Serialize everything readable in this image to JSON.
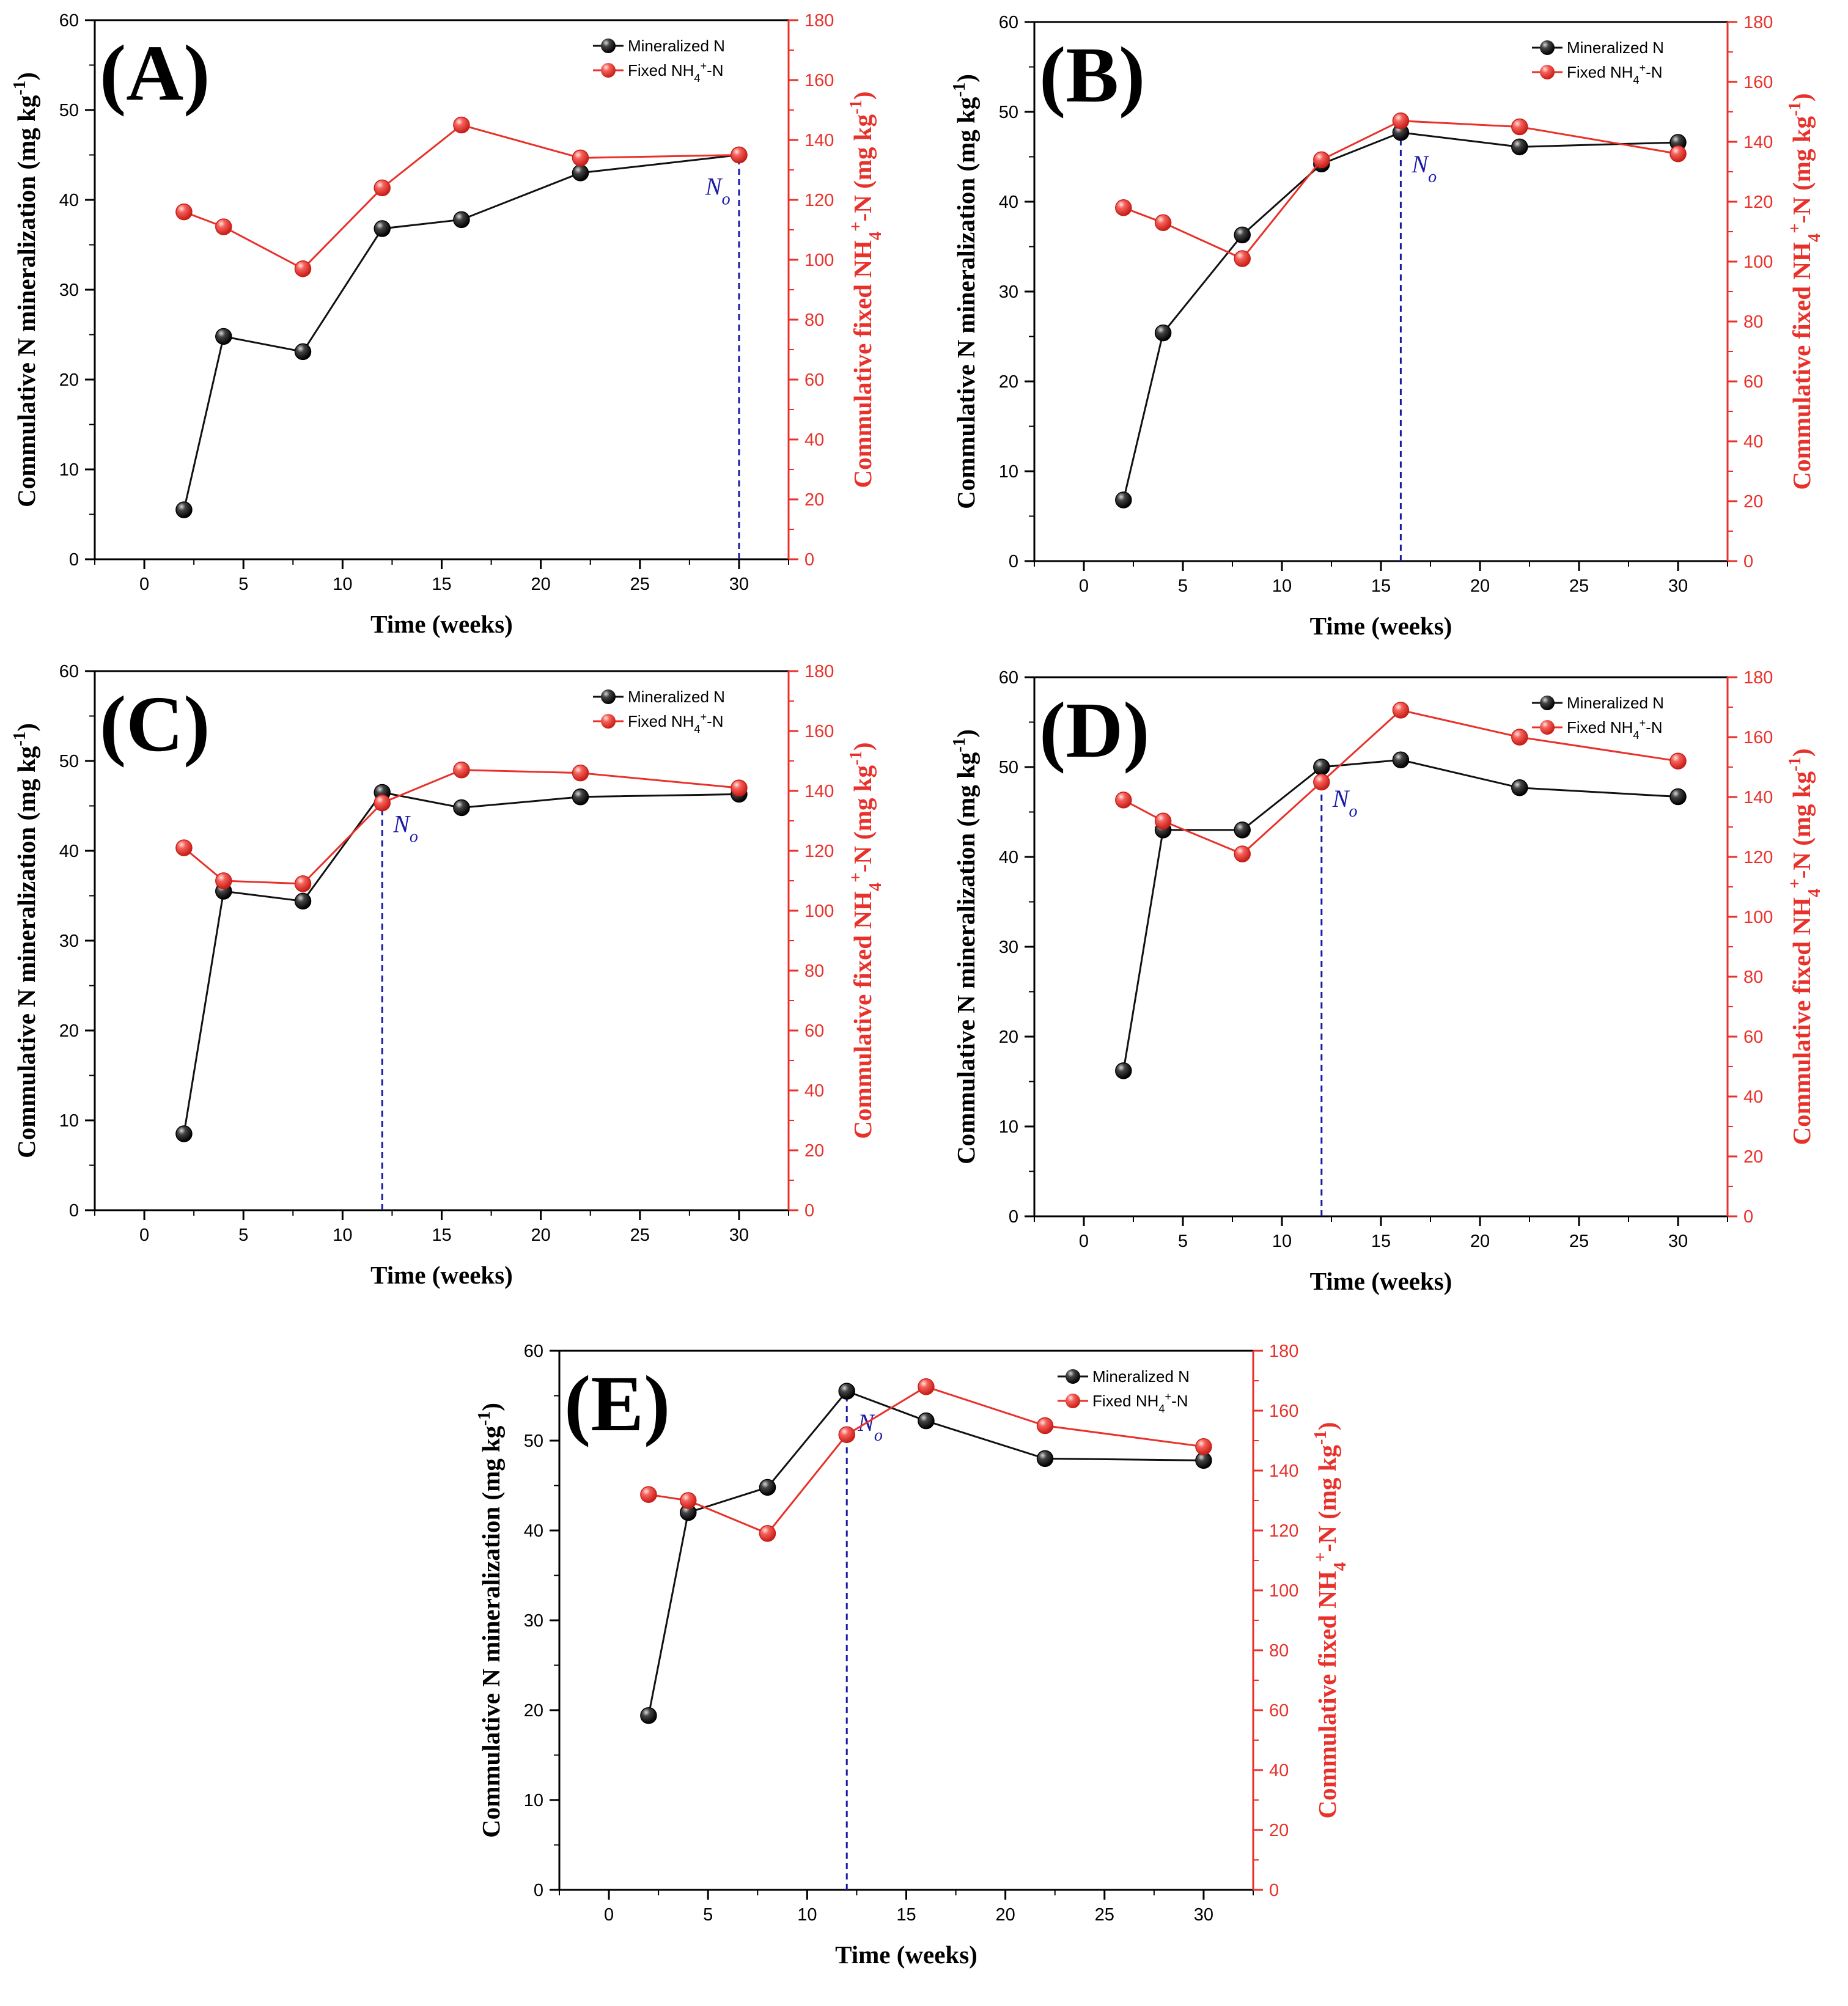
{
  "figure": {
    "colors": {
      "mineralized": "#111111",
      "fixed": "#e8312a",
      "marker_line": "#1a1aa8",
      "axis": "#000000"
    }
  },
  "chart_data": [
    {
      "type": "line",
      "panel_label": "(A)",
      "xlabel": "Time (weeks)",
      "ylabel": "Commulative N mineralization (mg kg-1)",
      "y2label": "Commulative fixed NH4+-N (mg kg-1)",
      "xlim": [
        -2.5,
        32.5
      ],
      "ylim": [
        0,
        60
      ],
      "y2lim": [
        0,
        180
      ],
      "xticks": [
        0,
        5,
        10,
        15,
        20,
        25,
        30
      ],
      "yticks": [
        0,
        10,
        20,
        30,
        40,
        50,
        60
      ],
      "y2ticks": [
        0,
        20,
        40,
        60,
        80,
        100,
        120,
        140,
        160,
        180
      ],
      "x": [
        2,
        4,
        8,
        12,
        16,
        22,
        30
      ],
      "series": [
        {
          "name": "Mineralized N",
          "axis": "left",
          "values": [
            5.5,
            24.8,
            23.1,
            36.8,
            37.8,
            43.0,
            45.0
          ]
        },
        {
          "name": "Fixed NH4+-N",
          "axis": "right",
          "values": [
            116,
            111,
            97,
            124,
            145,
            134,
            135
          ]
        }
      ],
      "annotation": {
        "label": "No",
        "x": 30,
        "y": 45.0
      }
    },
    {
      "type": "line",
      "panel_label": "(B)",
      "xlabel": "Time (weeks)",
      "ylabel": "Commulative N mineralization (mg kg-1)",
      "y2label": "Commulative fixed NH4+-N (mg kg-1)",
      "xlim": [
        -2.5,
        32.5
      ],
      "ylim": [
        0,
        60
      ],
      "y2lim": [
        0,
        180
      ],
      "xticks": [
        0,
        5,
        10,
        15,
        20,
        25,
        30
      ],
      "yticks": [
        0,
        10,
        20,
        30,
        40,
        50,
        60
      ],
      "y2ticks": [
        0,
        20,
        40,
        60,
        80,
        100,
        120,
        140,
        160,
        180
      ],
      "x": [
        2,
        4,
        8,
        12,
        16,
        22,
        30
      ],
      "series": [
        {
          "name": "Mineralized N",
          "axis": "left",
          "values": [
            6.8,
            25.4,
            36.3,
            44.2,
            47.7,
            46.1,
            46.6
          ]
        },
        {
          "name": "Fixed NH4+-N",
          "axis": "right",
          "values": [
            118,
            113,
            101,
            134,
            147,
            145,
            136
          ]
        }
      ],
      "annotation": {
        "label": "No",
        "x": 16,
        "y": 47.7
      }
    },
    {
      "type": "line",
      "panel_label": "(C)",
      "xlabel": "Time (weeks)",
      "ylabel": "Commulative N mineralization (mg kg-1)",
      "y2label": "Commulative fixed NH4+-N (mg kg-1)",
      "xlim": [
        -2.5,
        32.5
      ],
      "ylim": [
        0,
        60
      ],
      "y2lim": [
        0,
        180
      ],
      "xticks": [
        0,
        5,
        10,
        15,
        20,
        25,
        30
      ],
      "yticks": [
        0,
        10,
        20,
        30,
        40,
        50,
        60
      ],
      "y2ticks": [
        0,
        20,
        40,
        60,
        80,
        100,
        120,
        140,
        160,
        180
      ],
      "x": [
        2,
        4,
        8,
        12,
        16,
        22,
        30
      ],
      "series": [
        {
          "name": "Mineralized N",
          "axis": "left",
          "values": [
            8.5,
            35.5,
            34.4,
            46.5,
            44.8,
            46.0,
            46.3
          ]
        },
        {
          "name": "Fixed NH4+-N",
          "axis": "right",
          "values": [
            121,
            110,
            109,
            136,
            147,
            146,
            141
          ]
        }
      ],
      "annotation": {
        "label": "No",
        "x": 12,
        "y": 46.5
      }
    },
    {
      "type": "line",
      "panel_label": "(D)",
      "xlabel": "Time (weeks)",
      "ylabel": "Commulative N mineralization (mg kg-1)",
      "y2label": "Commulative fixed NH4+-N (mg kg-1)",
      "xlim": [
        -2.5,
        32.5
      ],
      "ylim": [
        0,
        60
      ],
      "y2lim": [
        0,
        180
      ],
      "xticks": [
        0,
        5,
        10,
        15,
        20,
        25,
        30
      ],
      "yticks": [
        0,
        10,
        20,
        30,
        40,
        50,
        60
      ],
      "y2ticks": [
        0,
        20,
        40,
        60,
        80,
        100,
        120,
        140,
        160,
        180
      ],
      "x": [
        2,
        4,
        8,
        12,
        16,
        22,
        30
      ],
      "series": [
        {
          "name": "Mineralized N",
          "axis": "left",
          "values": [
            16.2,
            43.0,
            43.0,
            50.0,
            50.8,
            47.7,
            46.7
          ]
        },
        {
          "name": "Fixed NH4+-N",
          "axis": "right",
          "values": [
            139,
            132,
            121,
            145,
            169,
            160,
            152
          ]
        }
      ],
      "annotation": {
        "label": "No",
        "x": 12,
        "y": 50.0
      }
    },
    {
      "type": "line",
      "panel_label": "(E)",
      "xlabel": "Time (weeks)",
      "ylabel": "Commulative N mineralization (mg kg-1)",
      "y2label": "Commulative fixed NH4+-N (mg kg-1)",
      "xlim": [
        -2.5,
        32.5
      ],
      "ylim": [
        0,
        60
      ],
      "y2lim": [
        0,
        180
      ],
      "xticks": [
        0,
        5,
        10,
        15,
        20,
        25,
        30
      ],
      "yticks": [
        0,
        10,
        20,
        30,
        40,
        50,
        60
      ],
      "y2ticks": [
        0,
        20,
        40,
        60,
        80,
        100,
        120,
        140,
        160,
        180
      ],
      "x": [
        2,
        4,
        8,
        12,
        16,
        22,
        30
      ],
      "series": [
        {
          "name": "Mineralized N",
          "axis": "left",
          "values": [
            19.4,
            42.0,
            44.8,
            55.5,
            52.2,
            48.0,
            47.8
          ]
        },
        {
          "name": "Fixed NH4+-N",
          "axis": "right",
          "values": [
            132,
            130,
            119,
            152,
            168,
            155,
            148
          ]
        }
      ],
      "annotation": {
        "label": "No",
        "x": 12,
        "y": 55.5
      }
    }
  ]
}
